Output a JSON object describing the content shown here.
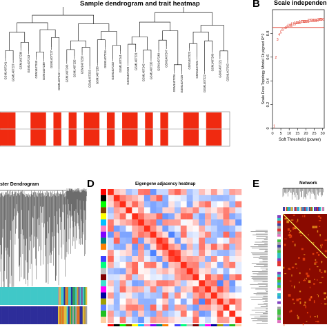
{
  "panelA": {
    "title": "Sample dendrogram and trait heatmap",
    "samples": [
      "GSM1407241",
      "GSM1407237",
      "GSM1407236",
      "GSM1407243",
      "GSM1407240",
      "GSM1407239",
      "GSM1407227",
      "GSM1407242",
      "GSM1407246",
      "GSM1407235",
      "GSM1407228",
      "GSM1407233",
      "GSM1407238",
      "GSM1407234",
      "GSM1407232",
      "GSM1407244",
      "GSM1407229",
      "GSM1407231",
      "GSM1407245",
      "GSM1407230",
      "GSM1407248",
      "GSM1407247",
      "GSM1407226",
      "GSM1407225",
      "GSM1407223",
      "GSM1407224",
      "GSM1407222",
      "GSM1407249",
      "GSM1407221",
      "GSM1407250"
    ],
    "trait_rows": [
      [
        1,
        1,
        0,
        0,
        1,
        1,
        0,
        1,
        0,
        1,
        0,
        1,
        1,
        0,
        1,
        0,
        1,
        1,
        0,
        1,
        0,
        1,
        0,
        0,
        1,
        1,
        0,
        1,
        1,
        0
      ],
      [
        1,
        1,
        0,
        0,
        1,
        1,
        0,
        1,
        0,
        1,
        0,
        1,
        1,
        0,
        1,
        0,
        1,
        1,
        0,
        1,
        0,
        1,
        0,
        0,
        1,
        1,
        0,
        1,
        1,
        0
      ]
    ]
  },
  "panelB": {
    "letter": "B",
    "title": "Scale independence",
    "xlabel": "Soft Threshold (power)",
    "ylabel": "Scale Free Topology Model Fit,signed R^2"
  },
  "panelC": {
    "title": "ster Dendrogram"
  },
  "panelD": {
    "letter": "D",
    "title": "Eigengene adjacency heatmap"
  },
  "panelE": {
    "letter": "E",
    "title": "Network"
  },
  "chart_data": [
    {
      "type": "scatter",
      "title": "Scale independence",
      "xlabel": "Soft Threshold (power)",
      "ylabel": "Scale Free Topology Model Fit,signed R^2",
      "x": [
        1,
        2,
        3,
        4,
        5,
        6,
        7,
        8,
        9,
        10,
        11,
        12,
        13,
        14,
        15,
        16,
        17,
        18,
        19,
        20,
        21,
        22,
        23,
        24,
        25,
        26,
        27,
        28,
        29,
        30
      ],
      "y": [
        0.02,
        0.6,
        0.75,
        0.79,
        0.81,
        0.83,
        0.84,
        0.85,
        0.86,
        0.87,
        0.87,
        0.88,
        0.88,
        0.89,
        0.89,
        0.89,
        0.9,
        0.9,
        0.9,
        0.9,
        0.9,
        0.91,
        0.91,
        0.91,
        0.91,
        0.91,
        0.91,
        0.92,
        0.92,
        0.92
      ],
      "xlim": [
        0,
        31
      ],
      "ylim": [
        0,
        1
      ],
      "xticks": [
        0,
        5,
        10,
        15,
        20,
        25,
        30
      ],
      "yticks": [
        0,
        0.2,
        0.4,
        0.6,
        0.8
      ],
      "threshold": 0.85,
      "point_labels_visible": [
        "1",
        "2",
        "3"
      ],
      "colors": {
        "points": "#e03020",
        "threshold": "#e03020"
      }
    }
  ],
  "colors": {
    "trait_red": "#f02a10",
    "heat_red": "#d73027",
    "heat_blue": "#4575b4",
    "tom_dark": "#7a0000",
    "tom_yellow": "#ffff40"
  }
}
